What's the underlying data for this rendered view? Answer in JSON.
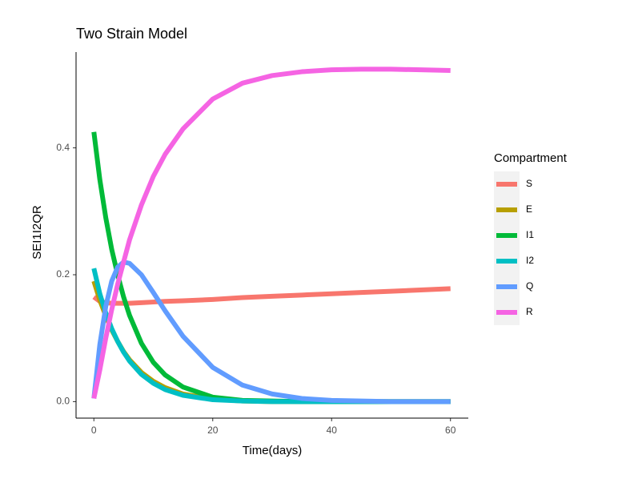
{
  "chart_data": {
    "type": "line",
    "title": "Two Strain Model",
    "x_label": "Time(days)",
    "y_label": "SEI1I2QR",
    "legend_title": "Compartment",
    "legend_position": "right",
    "grid": false,
    "x": [
      0,
      1,
      2,
      3,
      4,
      5,
      6,
      8,
      10,
      12,
      15,
      20,
      25,
      30,
      35,
      40,
      45,
      50,
      55,
      60
    ],
    "series": [
      {
        "name": "S",
        "color": "#F8766D",
        "values": [
          0.165,
          0.158,
          0.156,
          0.155,
          0.155,
          0.155,
          0.155,
          0.156,
          0.157,
          0.158,
          0.159,
          0.161,
          0.164,
          0.166,
          0.168,
          0.17,
          0.172,
          0.174,
          0.176,
          0.178
        ]
      },
      {
        "name": "E",
        "color": "#B79F00",
        "values": [
          0.19,
          0.16,
          0.135,
          0.113,
          0.095,
          0.079,
          0.066,
          0.046,
          0.032,
          0.022,
          0.012,
          0.004,
          0.001,
          0,
          0,
          0,
          0,
          0,
          0,
          0
        ]
      },
      {
        "name": "I1",
        "color": "#00BA38",
        "values": [
          0.425,
          0.35,
          0.29,
          0.24,
          0.2,
          0.165,
          0.136,
          0.092,
          0.062,
          0.042,
          0.023,
          0.007,
          0.002,
          0.001,
          0,
          0,
          0,
          0,
          0,
          0
        ]
      },
      {
        "name": "I2",
        "color": "#00BFC4",
        "values": [
          0.21,
          0.17,
          0.14,
          0.115,
          0.095,
          0.078,
          0.064,
          0.043,
          0.029,
          0.019,
          0.01,
          0.003,
          0.001,
          0,
          0,
          0,
          0,
          0,
          0,
          0
        ]
      },
      {
        "name": "Q",
        "color": "#619CFF",
        "values": [
          0.005,
          0.09,
          0.15,
          0.19,
          0.212,
          0.22,
          0.218,
          0.2,
          0.172,
          0.143,
          0.103,
          0.054,
          0.026,
          0.012,
          0.005,
          0.002,
          0.001,
          0,
          0,
          0
        ]
      },
      {
        "name": "R",
        "color": "#F564E3",
        "values": [
          0.005,
          0.05,
          0.1,
          0.145,
          0.185,
          0.22,
          0.255,
          0.31,
          0.355,
          0.39,
          0.43,
          0.477,
          0.502,
          0.514,
          0.52,
          0.523,
          0.524,
          0.524,
          0.523,
          0.522
        ]
      }
    ],
    "xlim": [
      -3,
      63
    ],
    "xticks": [
      0,
      20,
      40,
      60
    ],
    "ylim": [
      -0.026,
      0.551
    ],
    "yticks": [
      {
        "value": 0,
        "label": "0.0"
      },
      0.2,
      0.4
    ]
  }
}
